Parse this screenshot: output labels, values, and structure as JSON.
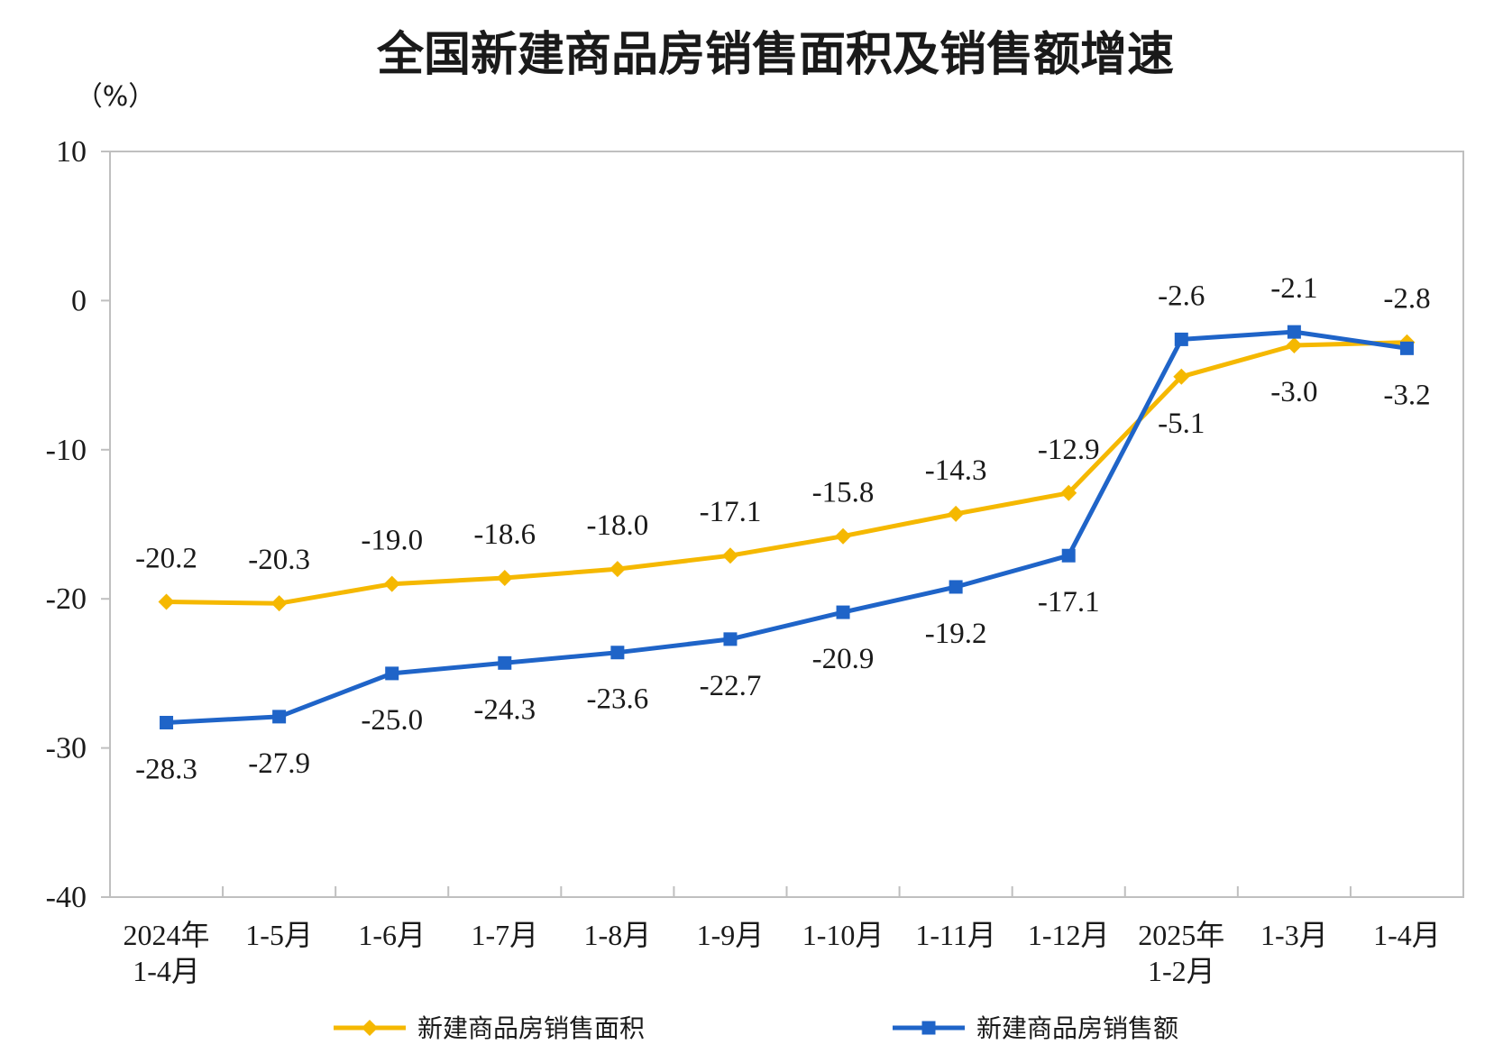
{
  "chart_data": {
    "type": "line",
    "title": "全国新建商品房销售面积及销售额增速",
    "unit_label": "（%）",
    "categories": [
      [
        "2024年",
        "1-4月"
      ],
      [
        "1-5月"
      ],
      [
        "1-6月"
      ],
      [
        "1-7月"
      ],
      [
        "1-8月"
      ],
      [
        "1-9月"
      ],
      [
        "1-10月"
      ],
      [
        "1-11月"
      ],
      [
        "1-12月"
      ],
      [
        "2025年",
        "1-2月"
      ],
      [
        "1-3月"
      ],
      [
        "1-4月"
      ]
    ],
    "ylim": [
      -40,
      10
    ],
    "yticks": [
      10,
      0,
      -10,
      -20,
      -30,
      -40
    ],
    "grid": false,
    "legend_position": "bottom",
    "series": [
      {
        "name": "新建商品房销售面积",
        "color": "#F5B800",
        "marker": "diamond",
        "values": [
          -20.2,
          -20.3,
          -19.0,
          -18.6,
          -18.0,
          -17.1,
          -15.8,
          -14.3,
          -12.9,
          -5.1,
          -3.0,
          -2.8
        ],
        "label_text": [
          "-20.2",
          "-20.3",
          "-19.0",
          "-18.6",
          "-18.0",
          "-17.1",
          "-15.8",
          "-14.3",
          "-12.9",
          "-5.1",
          "-3.0",
          "-2.8"
        ],
        "label_side": [
          "above",
          "above",
          "above",
          "above",
          "above",
          "above",
          "above",
          "above",
          "above",
          "below",
          "below",
          "above"
        ]
      },
      {
        "name": "新建商品房销售额",
        "color": "#1F64C8",
        "marker": "square",
        "values": [
          -28.3,
          -27.9,
          -25.0,
          -24.3,
          -23.6,
          -22.7,
          -20.9,
          -19.2,
          -17.1,
          -2.6,
          -2.1,
          -3.2
        ],
        "label_text": [
          "-28.3",
          "-27.9",
          "-25.0",
          "-24.3",
          "-23.6",
          "-22.7",
          "-20.9",
          "-19.2",
          "-17.1",
          "-2.6",
          "-2.1",
          "-3.2"
        ],
        "label_side": [
          "below",
          "below",
          "below",
          "below",
          "below",
          "below",
          "below",
          "below",
          "below",
          "above",
          "above",
          "below"
        ]
      }
    ]
  }
}
